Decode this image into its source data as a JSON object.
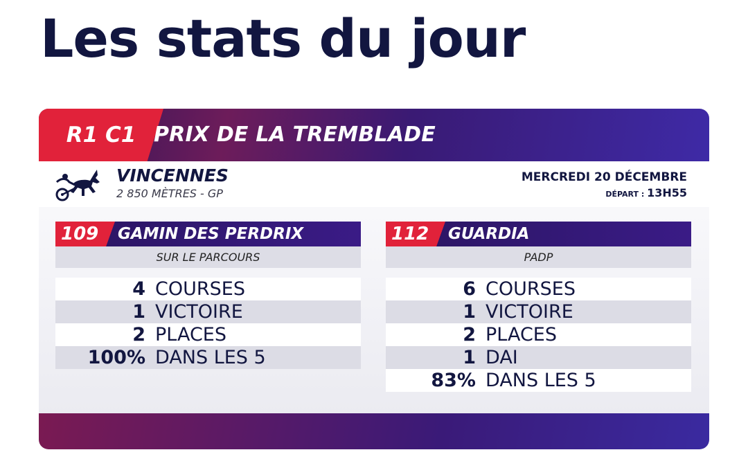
{
  "page": {
    "title": "Les stats du jour"
  },
  "race": {
    "code": "R1 C1",
    "name": "PRIX DE LA TREMBLADE",
    "venue": "VINCENNES",
    "distance": "2 850 MÈTRES - GP",
    "date": "MERCREDI 20 DÉCEMBRE",
    "depart_label": "DÉPART : ",
    "depart_time": "13H55",
    "icon": "harness-horse-icon"
  },
  "horses": [
    {
      "number": "109",
      "name": "GAMIN DES PERDRIX",
      "subtitle": "SUR LE PARCOURS",
      "stats": [
        {
          "value": "4",
          "label": "COURSES"
        },
        {
          "value": "1",
          "label": "VICTOIRE"
        },
        {
          "value": "2",
          "label": "PLACES"
        },
        {
          "value": "100%",
          "label": "DANS LES 5"
        }
      ]
    },
    {
      "number": "112",
      "name": "GUARDIA",
      "subtitle": "PADP",
      "stats": [
        {
          "value": "6",
          "label": "COURSES"
        },
        {
          "value": "1",
          "label": "VICTOIRE"
        },
        {
          "value": "2",
          "label": "PLACES"
        },
        {
          "value": "1",
          "label": "DAI"
        },
        {
          "value": "83%",
          "label": "DANS LES 5"
        }
      ]
    }
  ],
  "colors": {
    "accent_red": "#e1223a",
    "navy": "#121640",
    "purple": "#3a1b86"
  }
}
